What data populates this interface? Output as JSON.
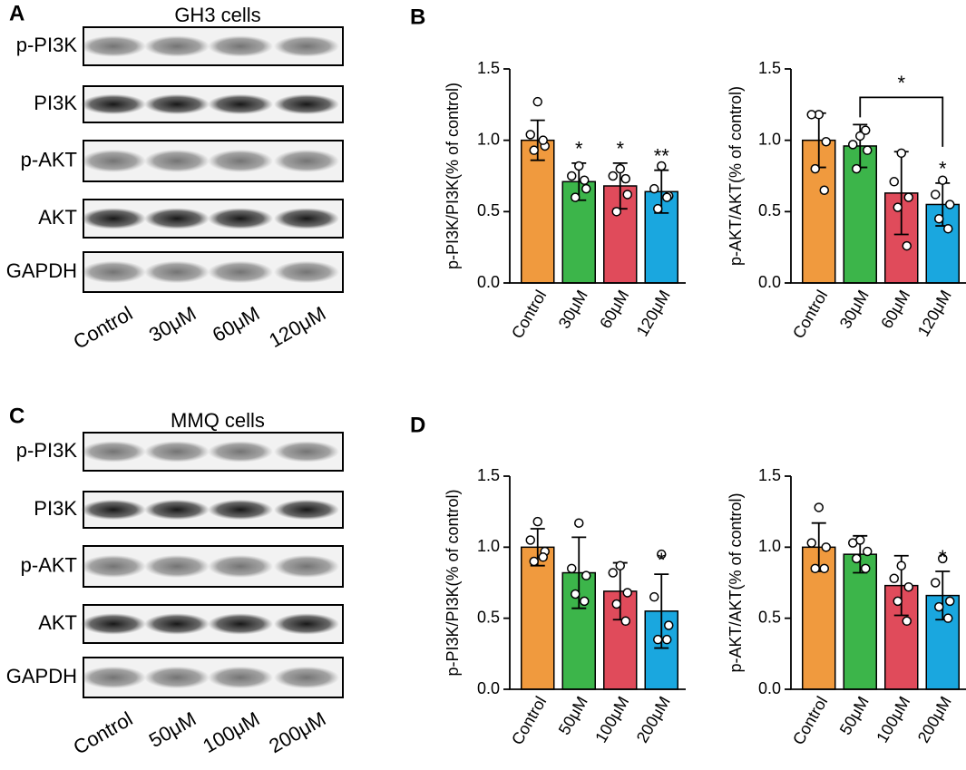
{
  "panel_labels": [
    "A",
    "B",
    "C",
    "D"
  ],
  "blots": [
    {
      "title": "GH3 cells",
      "rows": [
        "p-PI3K",
        "PI3K",
        "p-AKT",
        "AKT",
        "GAPDH"
      ],
      "lanes": [
        "Control",
        "30μM",
        "60μM",
        "120μM"
      ]
    },
    {
      "title": "MMQ cells",
      "rows": [
        "p-PI3K",
        "PI3K",
        "p-AKT",
        "AKT",
        "GAPDH"
      ],
      "lanes": [
        "Control",
        "50μM",
        "100μM",
        "200μM"
      ]
    }
  ],
  "chart_data": [
    {
      "type": "bar",
      "y_label": "p-PI3K/PI3K(% of control)",
      "categories": [
        "Control",
        "30μM",
        "60μM",
        "120μM"
      ],
      "values": [
        1.0,
        0.71,
        0.68,
        0.64
      ],
      "errors": [
        0.14,
        0.13,
        0.16,
        0.15
      ],
      "points": [
        [
          1.27,
          1.04,
          0.96,
          0.93,
          1.0
        ],
        [
          0.82,
          0.75,
          0.66,
          0.6,
          0.72
        ],
        [
          0.8,
          0.75,
          0.62,
          0.5,
          0.73
        ],
        [
          0.82,
          0.66,
          0.61,
          0.52,
          0.6
        ]
      ],
      "colors": [
        "#f09a3e",
        "#3cb54a",
        "#e04b5b",
        "#1aa7df"
      ],
      "significance": [
        null,
        "*",
        "*",
        "**"
      ],
      "ylim": [
        0,
        1.5
      ],
      "yticks": [
        {
          "value": 0,
          "label": "0.0"
        },
        0.5,
        {
          "value": 1,
          "label": "1.0"
        },
        1.5
      ]
    },
    {
      "type": "bar",
      "y_label": "p-AKT/AKT(% of control)",
      "categories": [
        "Control",
        "30μM",
        "60μM",
        "120μM"
      ],
      "values": [
        1.0,
        0.96,
        0.63,
        0.55
      ],
      "errors": [
        0.19,
        0.15,
        0.29,
        0.15
      ],
      "points": [
        [
          1.18,
          1.18,
          0.99,
          0.8,
          0.65
        ],
        [
          1.03,
          0.97,
          0.93,
          0.8,
          1.07
        ],
        [
          0.91,
          0.71,
          0.6,
          0.53,
          0.26
        ],
        [
          0.72,
          0.62,
          0.55,
          0.45,
          0.38
        ]
      ],
      "colors": [
        "#f09a3e",
        "#3cb54a",
        "#e04b5b",
        "#1aa7df"
      ],
      "significance": [
        null,
        null,
        null,
        "*"
      ],
      "bracket": {
        "label": "*",
        "categories": [
          "30μM",
          "120μM"
        ]
      },
      "ylim": [
        0,
        1.5
      ],
      "yticks": [
        {
          "value": 0,
          "label": "0.0"
        },
        0.5,
        {
          "value": 1,
          "label": "1.0"
        },
        1.5
      ]
    },
    {
      "type": "bar",
      "y_label": "p-PI3K/PI3K(% of control)",
      "categories": [
        "Control",
        "50μM",
        "100μM",
        "200μM"
      ],
      "values": [
        1.0,
        0.82,
        0.69,
        0.55
      ],
      "errors": [
        0.13,
        0.25,
        0.2,
        0.26
      ],
      "points": [
        [
          1.18,
          1.05,
          0.97,
          0.9,
          0.93
        ],
        [
          1.17,
          0.85,
          0.8,
          0.67,
          0.62
        ],
        [
          0.87,
          0.82,
          0.68,
          0.6,
          0.48
        ],
        [
          0.95,
          0.65,
          0.45,
          0.35,
          0.35
        ]
      ],
      "colors": [
        "#f09a3e",
        "#3cb54a",
        "#e04b5b",
        "#1aa7df"
      ],
      "significance": [
        null,
        null,
        null,
        "*"
      ],
      "ylim": [
        0,
        1.5
      ],
      "yticks": [
        {
          "value": 0,
          "label": "0.0"
        },
        0.5,
        {
          "value": 1,
          "label": "1.0"
        },
        1.5
      ]
    },
    {
      "type": "bar",
      "y_label": "p-AKT/AKT(% of control)",
      "categories": [
        "Control",
        "50μM",
        "100μM",
        "200μM"
      ],
      "values": [
        1.0,
        0.95,
        0.73,
        0.66
      ],
      "errors": [
        0.17,
        0.13,
        0.21,
        0.17
      ],
      "points": [
        [
          1.28,
          1.03,
          1.0,
          0.85,
          0.85
        ],
        [
          1.05,
          1.03,
          0.97,
          0.92,
          0.85
        ],
        [
          0.87,
          0.78,
          0.72,
          0.62,
          0.48
        ],
        [
          0.92,
          0.75,
          0.62,
          0.58,
          0.5
        ]
      ],
      "colors": [
        "#f09a3e",
        "#3cb54a",
        "#e04b5b",
        "#1aa7df"
      ],
      "significance": [
        null,
        null,
        null,
        "*"
      ],
      "ylim": [
        0,
        1.5
      ],
      "yticks": [
        {
          "value": 0,
          "label": "0.0"
        },
        0.5,
        {
          "value": 1,
          "label": "1.0"
        },
        1.5
      ]
    }
  ]
}
